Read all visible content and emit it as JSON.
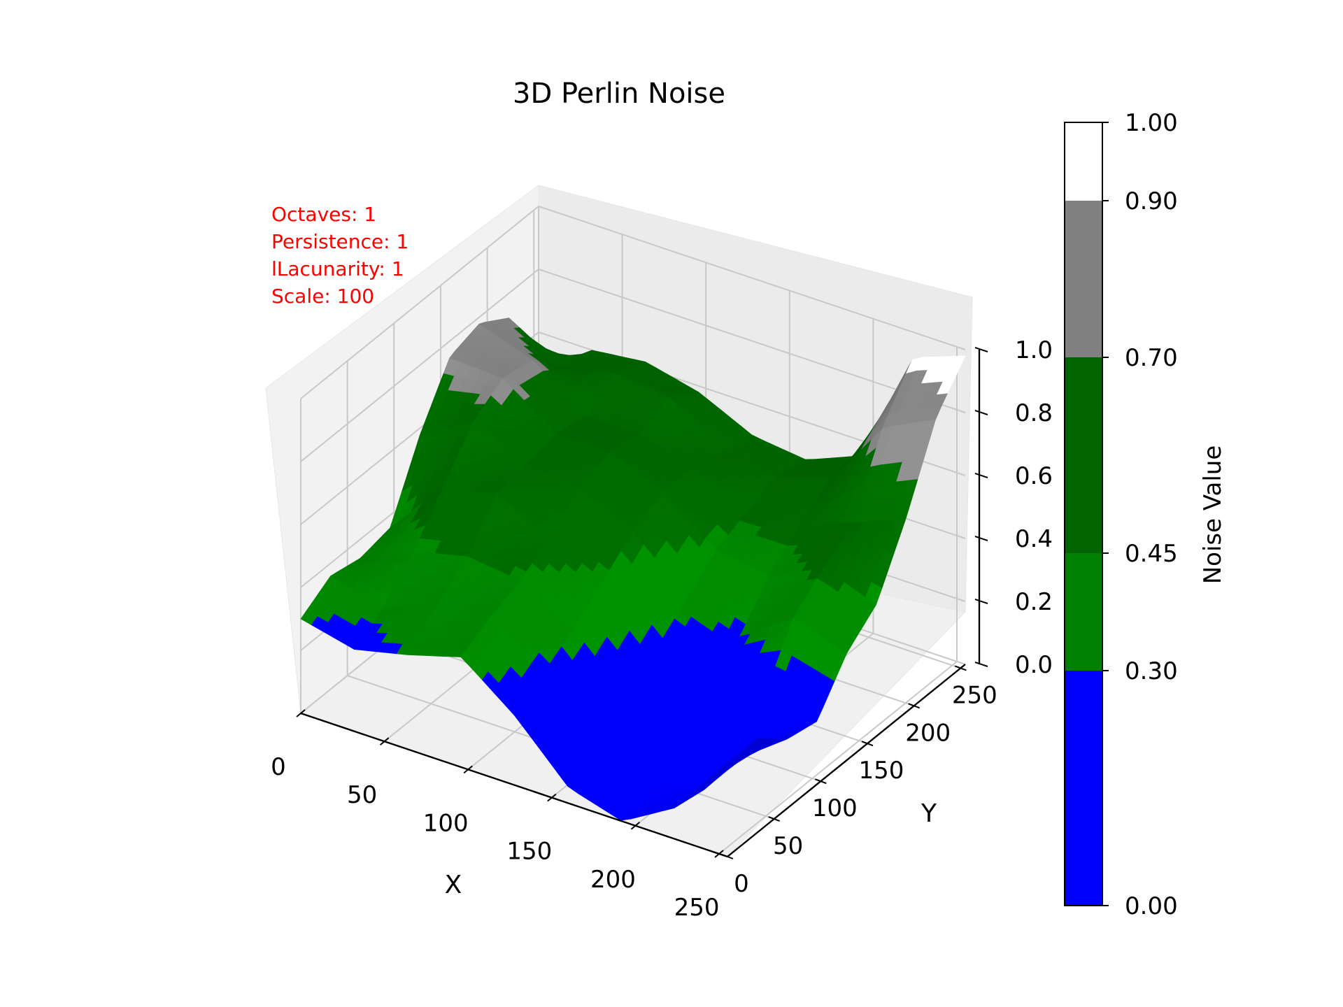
{
  "chart_data": {
    "type": "surface3d",
    "title": "3D Perlin Noise",
    "xlabel": "X",
    "ylabel": "Y",
    "zlabel": "",
    "xlim": [
      0,
      255
    ],
    "ylim": [
      0,
      255
    ],
    "zlim": [
      0,
      1
    ],
    "x_ticks": [
      0,
      50,
      100,
      150,
      200,
      250
    ],
    "y_ticks": [
      0,
      50,
      100,
      150,
      200,
      250
    ],
    "z_ticks": [
      0.0,
      0.2,
      0.4,
      0.6,
      0.8,
      1.0
    ],
    "x_tick_labels": [
      "0",
      "50",
      "100",
      "150",
      "200",
      "250"
    ],
    "y_tick_labels": [
      "0",
      "50",
      "100",
      "150",
      "200",
      "250"
    ],
    "z_tick_labels": [
      "0.0",
      "0.2",
      "0.4",
      "0.6",
      "0.8",
      "1.0"
    ],
    "grid": true,
    "annotations": [
      "Octaves: 1",
      "Persistence: 1",
      "lLacunarity: 1",
      "Scale: 100"
    ],
    "annotation_color": "#ff0000",
    "colorbar": {
      "label": "Noise Value",
      "boundaries": [
        0.0,
        0.3,
        0.45,
        0.7,
        0.9,
        1.0
      ],
      "tick_labels": [
        "0.00",
        "0.30",
        "0.45",
        "0.70",
        "0.90",
        "1.00"
      ],
      "colors": [
        "#0000ff",
        "#008000",
        "#006400",
        "#808080",
        "#ffffff"
      ]
    },
    "surface": {
      "x_range": [
        0,
        255
      ],
      "y_range": [
        0,
        255
      ],
      "grid_x": [
        0,
        32,
        64,
        96,
        128,
        160,
        192,
        224,
        255
      ],
      "grid_y": [
        0,
        32,
        64,
        96,
        128,
        160,
        192,
        224,
        255
      ],
      "z": [
        [
          0.3,
          0.36,
          0.34,
          0.36,
          0.58,
          0.75,
          0.78,
          0.72,
          0.48
        ],
        [
          0.26,
          0.32,
          0.42,
          0.55,
          0.68,
          0.74,
          0.72,
          0.62,
          0.6
        ],
        [
          0.3,
          0.38,
          0.46,
          0.58,
          0.6,
          0.62,
          0.6,
          0.66,
          0.62
        ],
        [
          0.35,
          0.4,
          0.44,
          0.5,
          0.58,
          0.62,
          0.6,
          0.64,
          0.58
        ],
        [
          0.22,
          0.28,
          0.34,
          0.42,
          0.5,
          0.55,
          0.55,
          0.52,
          0.5
        ],
        [
          0.05,
          0.1,
          0.18,
          0.26,
          0.34,
          0.42,
          0.46,
          0.5,
          0.48
        ],
        [
          0.0,
          0.04,
          0.12,
          0.2,
          0.28,
          0.4,
          0.48,
          0.55,
          0.55
        ],
        [
          0.1,
          0.08,
          0.1,
          0.22,
          0.4,
          0.48,
          0.55,
          0.78,
          0.92
        ],
        [
          0.3,
          0.3,
          0.22,
          0.2,
          0.34,
          0.42,
          0.62,
          0.86,
          0.98
        ]
      ]
    }
  }
}
